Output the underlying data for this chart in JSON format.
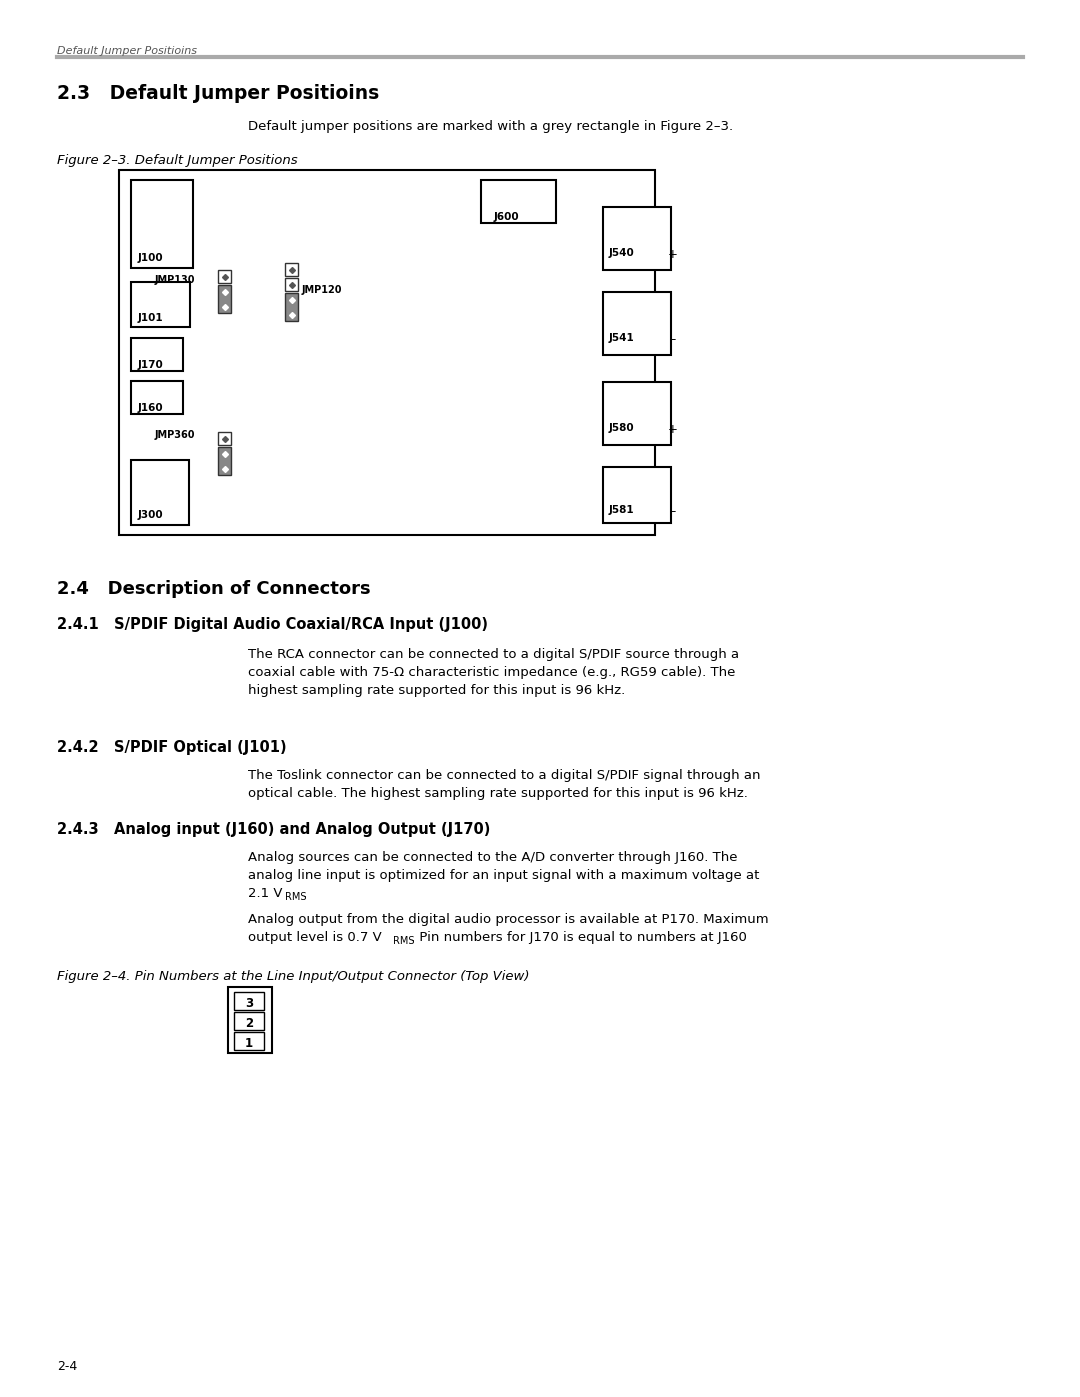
{
  "page_title": "Default Jumper Positioins",
  "section_23_title": "2.3   Default Jumper Positioins",
  "section_23_body": "Default jumper positions are marked with a grey rectangle in Figure 2–3.",
  "figure_23_caption": "Figure 2–3. Default Jumper Positions",
  "section_24_title": "2.4   Description of Connectors",
  "section_241_title": "2.4.1   S/PDIF Digital Audio Coaxial/RCA Input (J100)",
  "section_241_body_line1": "The RCA connector can be connected to a digital S/PDIF source through a",
  "section_241_body_line2": "coaxial cable with 75-Ω characteristic impedance (e.g., RG59 cable). The",
  "section_241_body_line3": "highest sampling rate supported for this input is 96 kHz.",
  "section_242_title": "2.4.2   S/PDIF Optical (J101)",
  "section_242_body_line1": "The Toslink connector can be connected to a digital S/PDIF signal through an",
  "section_242_body_line2": "optical cable. The highest sampling rate supported for this input is 96 kHz.",
  "section_243_title": "2.4.3   Analog input (J160) and Analog Output (J170)",
  "section_243_body1_line1": "Analog sources can be connected to the A/D converter through J160. The",
  "section_243_body1_line2": "analog line input is optimized for an input signal with a maximum voltage at",
  "section_243_body1_line3a": "2.1 V",
  "section_243_body1_line3b": "RMS",
  "section_243_body1_line3c": ".",
  "section_243_body2_line1": "Analog output from the digital audio processor is available at P170. Maximum",
  "section_243_body2_line2a": "output level is 0.7 V",
  "section_243_body2_line2b": "RMS",
  "section_243_body2_line2c": ". Pin numbers for J170 is equal to numbers at J160",
  "figure_24_caption": "Figure 2–4. Pin Numbers at the Line Input/Output Connector (Top View)",
  "page_number": "2-4",
  "bg_color": "#ffffff",
  "grey_pin": "#888888",
  "dark_pin": "#444444"
}
